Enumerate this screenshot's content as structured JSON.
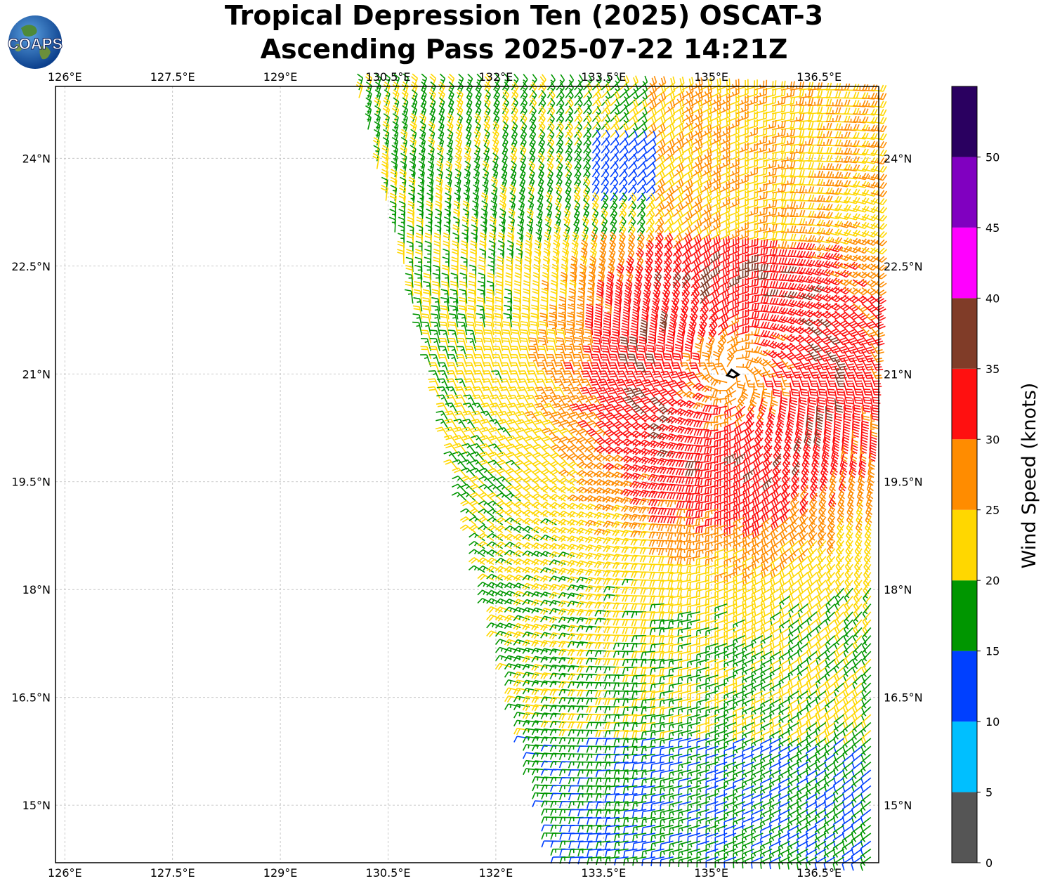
{
  "title": {
    "line1": "Tropical Depression Ten (2025) OSCAT-3",
    "line2": "Ascending Pass 2025-07-22 14:21Z"
  },
  "logo": {
    "text": "COAPS",
    "icon": "earth-globe-logo"
  },
  "map": {
    "lon_labels": [
      "126°E",
      "127.5°E",
      "129°E",
      "130.5°E",
      "132°E",
      "133.5°E",
      "135°E",
      "136.5°E"
    ],
    "lon_values": [
      126,
      127.5,
      129,
      130.5,
      132,
      133.5,
      135,
      136.5
    ],
    "lat_labels": [
      "15°N",
      "16.5°N",
      "18°N",
      "19.5°N",
      "21°N",
      "22.5°N",
      "24°N"
    ],
    "lat_values": [
      15,
      16.5,
      18,
      19.5,
      21,
      22.5,
      24
    ],
    "extent": {
      "lon_min": 125.87,
      "lon_max": 137.33,
      "lat_min": 14.2,
      "lat_max": 25.0
    },
    "storm_center": {
      "lon": 135.3,
      "lat": 21.0,
      "marker": "tropical-depression-symbol"
    },
    "gridlines": true
  },
  "colorbar": {
    "label": "Wind Speed (knots)",
    "ticks": [
      "0",
      "5",
      "10",
      "15",
      "20",
      "25",
      "30",
      "35",
      "40",
      "45",
      "50"
    ],
    "bins": [
      {
        "min": 0,
        "max": 5,
        "color": "#555555"
      },
      {
        "min": 5,
        "max": 10,
        "color": "#00bfff"
      },
      {
        "min": 10,
        "max": 15,
        "color": "#0040ff"
      },
      {
        "min": 15,
        "max": 20,
        "color": "#009600"
      },
      {
        "min": 20,
        "max": 25,
        "color": "#ffd700"
      },
      {
        "min": 25,
        "max": 30,
        "color": "#ff8c00"
      },
      {
        "min": 30,
        "max": 35,
        "color": "#ff1010"
      },
      {
        "min": 35,
        "max": 40,
        "color": "#803c28"
      },
      {
        "min": 40,
        "max": 45,
        "color": "#ff00ff"
      },
      {
        "min": 45,
        "max": 50,
        "color": "#8000c0"
      },
      {
        "min": 50,
        "max": 55,
        "color": "#2a0060"
      }
    ]
  }
}
